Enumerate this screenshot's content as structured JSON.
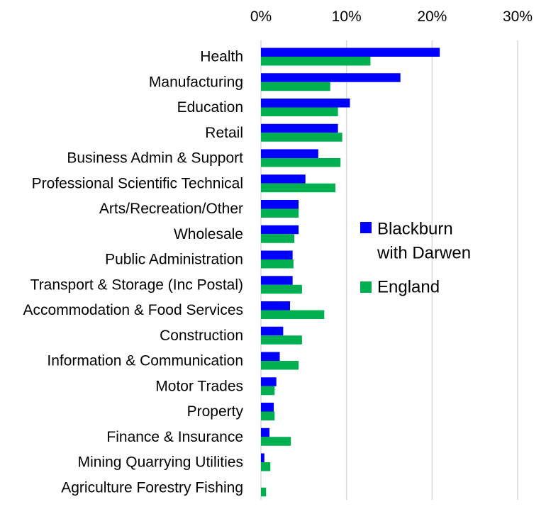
{
  "chart_data": {
    "type": "bar",
    "orientation": "horizontal",
    "categories": [
      "Health",
      "Manufacturing",
      "Education",
      "Retail",
      "Business Admin & Support",
      "Professional Scientific Technical",
      "Arts/Recreation/Other",
      "Wholesale",
      "Public Administration",
      "Transport & Storage (Inc Postal)",
      "Accommodation & Food Services",
      "Construction",
      "Information & Communication",
      "Motor Trades",
      "Property",
      "Finance & Insurance",
      "Mining Quarrying Utilities",
      "Agriculture Forestry Fishing"
    ],
    "series": [
      {
        "name": "Blackburn with Darwen",
        "legend_lines": [
          "Blackburn",
          "with Darwen"
        ],
        "color": "#0000ff",
        "values": [
          20.9,
          16.3,
          10.4,
          9.0,
          6.7,
          5.2,
          4.4,
          4.4,
          3.7,
          3.7,
          3.4,
          2.6,
          2.2,
          1.8,
          1.5,
          1.0,
          0.4,
          0.0
        ]
      },
      {
        "name": "England",
        "legend_lines": [
          "England"
        ],
        "color": "#00b050",
        "values": [
          12.8,
          8.1,
          9.0,
          9.5,
          9.3,
          8.7,
          4.4,
          3.9,
          3.8,
          4.8,
          7.4,
          4.8,
          4.4,
          1.6,
          1.6,
          3.5,
          1.1,
          0.6
        ]
      }
    ],
    "x_ticks": [
      "0%",
      "10%",
      "20%",
      "30%"
    ],
    "xlim": [
      0,
      30
    ],
    "x_axis_position": "top",
    "grid": true,
    "legend_position": "right"
  }
}
